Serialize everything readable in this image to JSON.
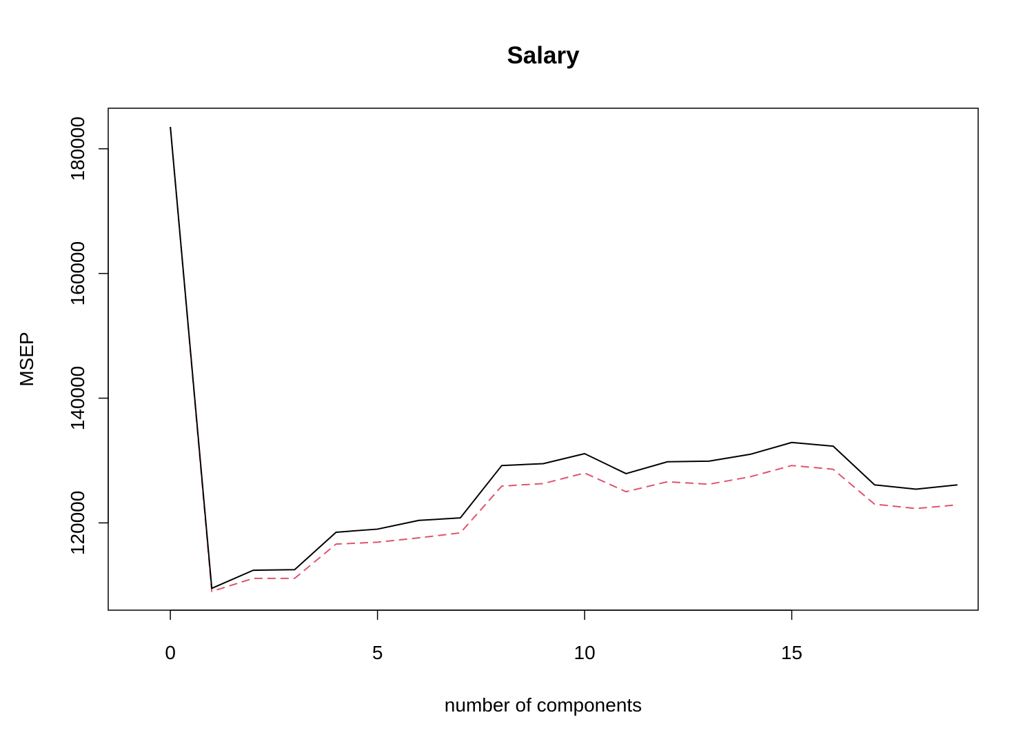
{
  "chart_data": {
    "type": "line",
    "title": "Salary",
    "xlabel": "number of components",
    "ylabel": "MSEP",
    "xlim": [
      -1.5,
      19.5
    ],
    "ylim": [
      106000,
      186500
    ],
    "x_ticks": [
      0,
      5,
      10,
      15
    ],
    "x_tick_labels": [
      "0",
      "5",
      "10",
      "15"
    ],
    "y_ticks": [
      120000,
      140000,
      160000,
      180000
    ],
    "y_tick_labels": [
      "120000",
      "140000",
      "160000",
      "180000"
    ],
    "grid": false,
    "legend": "none",
    "x": [
      0,
      1,
      2,
      3,
      4,
      5,
      6,
      7,
      8,
      9,
      10,
      11,
      12,
      13,
      14,
      15,
      16,
      17,
      18,
      19
    ],
    "series": [
      {
        "style": "solid",
        "color": "#000000",
        "values": [
          183500,
          109500,
          112400,
          112500,
          118500,
          119000,
          120400,
          120800,
          129200,
          129500,
          131100,
          127900,
          129800,
          129900,
          131000,
          132900,
          132300,
          126100,
          125400,
          126100
        ]
      },
      {
        "style": "dashed",
        "color": "#DF536B",
        "values": [
          183500,
          109000,
          111100,
          111100,
          116600,
          116900,
          117600,
          118400,
          125900,
          126300,
          128000,
          125000,
          126600,
          126200,
          127400,
          129200,
          128600,
          123000,
          122300,
          122900
        ]
      }
    ]
  }
}
